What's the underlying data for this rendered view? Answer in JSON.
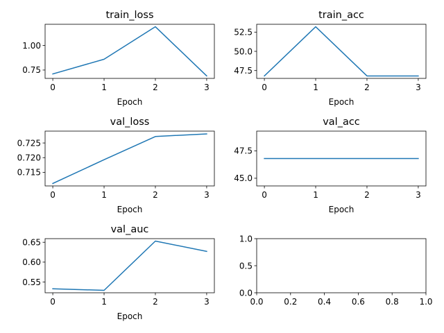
{
  "chart_data": [
    {
      "type": "line",
      "title": "train_loss",
      "xlabel": "Epoch",
      "x": [
        0,
        1,
        2,
        3
      ],
      "series": [
        {
          "values": [
            0.71,
            0.86,
            1.19,
            0.69
          ]
        }
      ],
      "xlim": [
        -0.15,
        3.15
      ],
      "ylim": [
        0.665,
        1.215
      ],
      "xticks": [
        0,
        1,
        2,
        3
      ],
      "yticks": [
        0.75,
        1.0
      ],
      "ytick_labels": [
        "0.75",
        "1.00"
      ],
      "grid": false,
      "color": "#1f77b4"
    },
    {
      "type": "line",
      "title": "train_acc",
      "xlabel": "Epoch",
      "x": [
        0,
        1,
        2,
        3
      ],
      "series": [
        {
          "values": [
            46.8,
            53.2,
            46.8,
            46.8
          ]
        }
      ],
      "xlim": [
        -0.15,
        3.15
      ],
      "ylim": [
        46.48,
        53.52
      ],
      "xticks": [
        0,
        1,
        2,
        3
      ],
      "yticks": [
        47.5,
        50.0,
        52.5
      ],
      "ytick_labels": [
        "47.5",
        "50.0",
        "52.5"
      ],
      "grid": false,
      "color": "#1f77b4"
    },
    {
      "type": "line",
      "title": "val_loss",
      "xlabel": "Epoch",
      "x": [
        0,
        1,
        2,
        3
      ],
      "series": [
        {
          "values": [
            0.7112,
            0.7193,
            0.7272,
            0.7281
          ]
        }
      ],
      "xlim": [
        -0.15,
        3.15
      ],
      "ylim": [
        0.71036,
        0.72904
      ],
      "xticks": [
        0,
        1,
        2,
        3
      ],
      "yticks": [
        0.715,
        0.72,
        0.725
      ],
      "ytick_labels": [
        "0.715",
        "0.720",
        "0.725"
      ],
      "grid": false,
      "color": "#1f77b4"
    },
    {
      "type": "line",
      "title": "val_acc",
      "xlabel": "Epoch",
      "x": [
        0,
        1,
        2,
        3
      ],
      "series": [
        {
          "values": [
            46.8,
            46.8,
            46.8,
            46.8
          ]
        }
      ],
      "xlim": [
        -0.15,
        3.15
      ],
      "ylim": [
        44.3,
        49.3
      ],
      "xticks": [
        0,
        1,
        2,
        3
      ],
      "yticks": [
        45.0,
        47.5
      ],
      "ytick_labels": [
        "45.0",
        "47.5"
      ],
      "grid": false,
      "color": "#1f77b4"
    },
    {
      "type": "line",
      "title": "val_auc",
      "xlabel": "Epoch",
      "x": [
        0,
        1,
        2,
        3
      ],
      "series": [
        {
          "values": [
            0.533,
            0.529,
            0.653,
            0.627
          ]
        }
      ],
      "xlim": [
        -0.15,
        3.15
      ],
      "ylim": [
        0.5229,
        0.6591
      ],
      "xticks": [
        0,
        1,
        2,
        3
      ],
      "yticks": [
        0.55,
        0.6,
        0.65
      ],
      "ytick_labels": [
        "0.55",
        "0.60",
        "0.65"
      ],
      "grid": false,
      "color": "#1f77b4"
    },
    {
      "type": "line",
      "title": "",
      "xlabel": "",
      "x": [],
      "series": [],
      "xlim": [
        0,
        1
      ],
      "ylim": [
        0,
        1
      ],
      "xticks": [
        0.0,
        0.2,
        0.4,
        0.6,
        0.8,
        1.0
      ],
      "xtick_labels": [
        "0.0",
        "0.2",
        "0.4",
        "0.6",
        "0.8",
        "1.0"
      ],
      "yticks": [
        0.0,
        0.5,
        1.0
      ],
      "ytick_labels": [
        "0.0",
        "0.5",
        "1.0"
      ],
      "grid": false,
      "color": "#1f77b4"
    }
  ]
}
